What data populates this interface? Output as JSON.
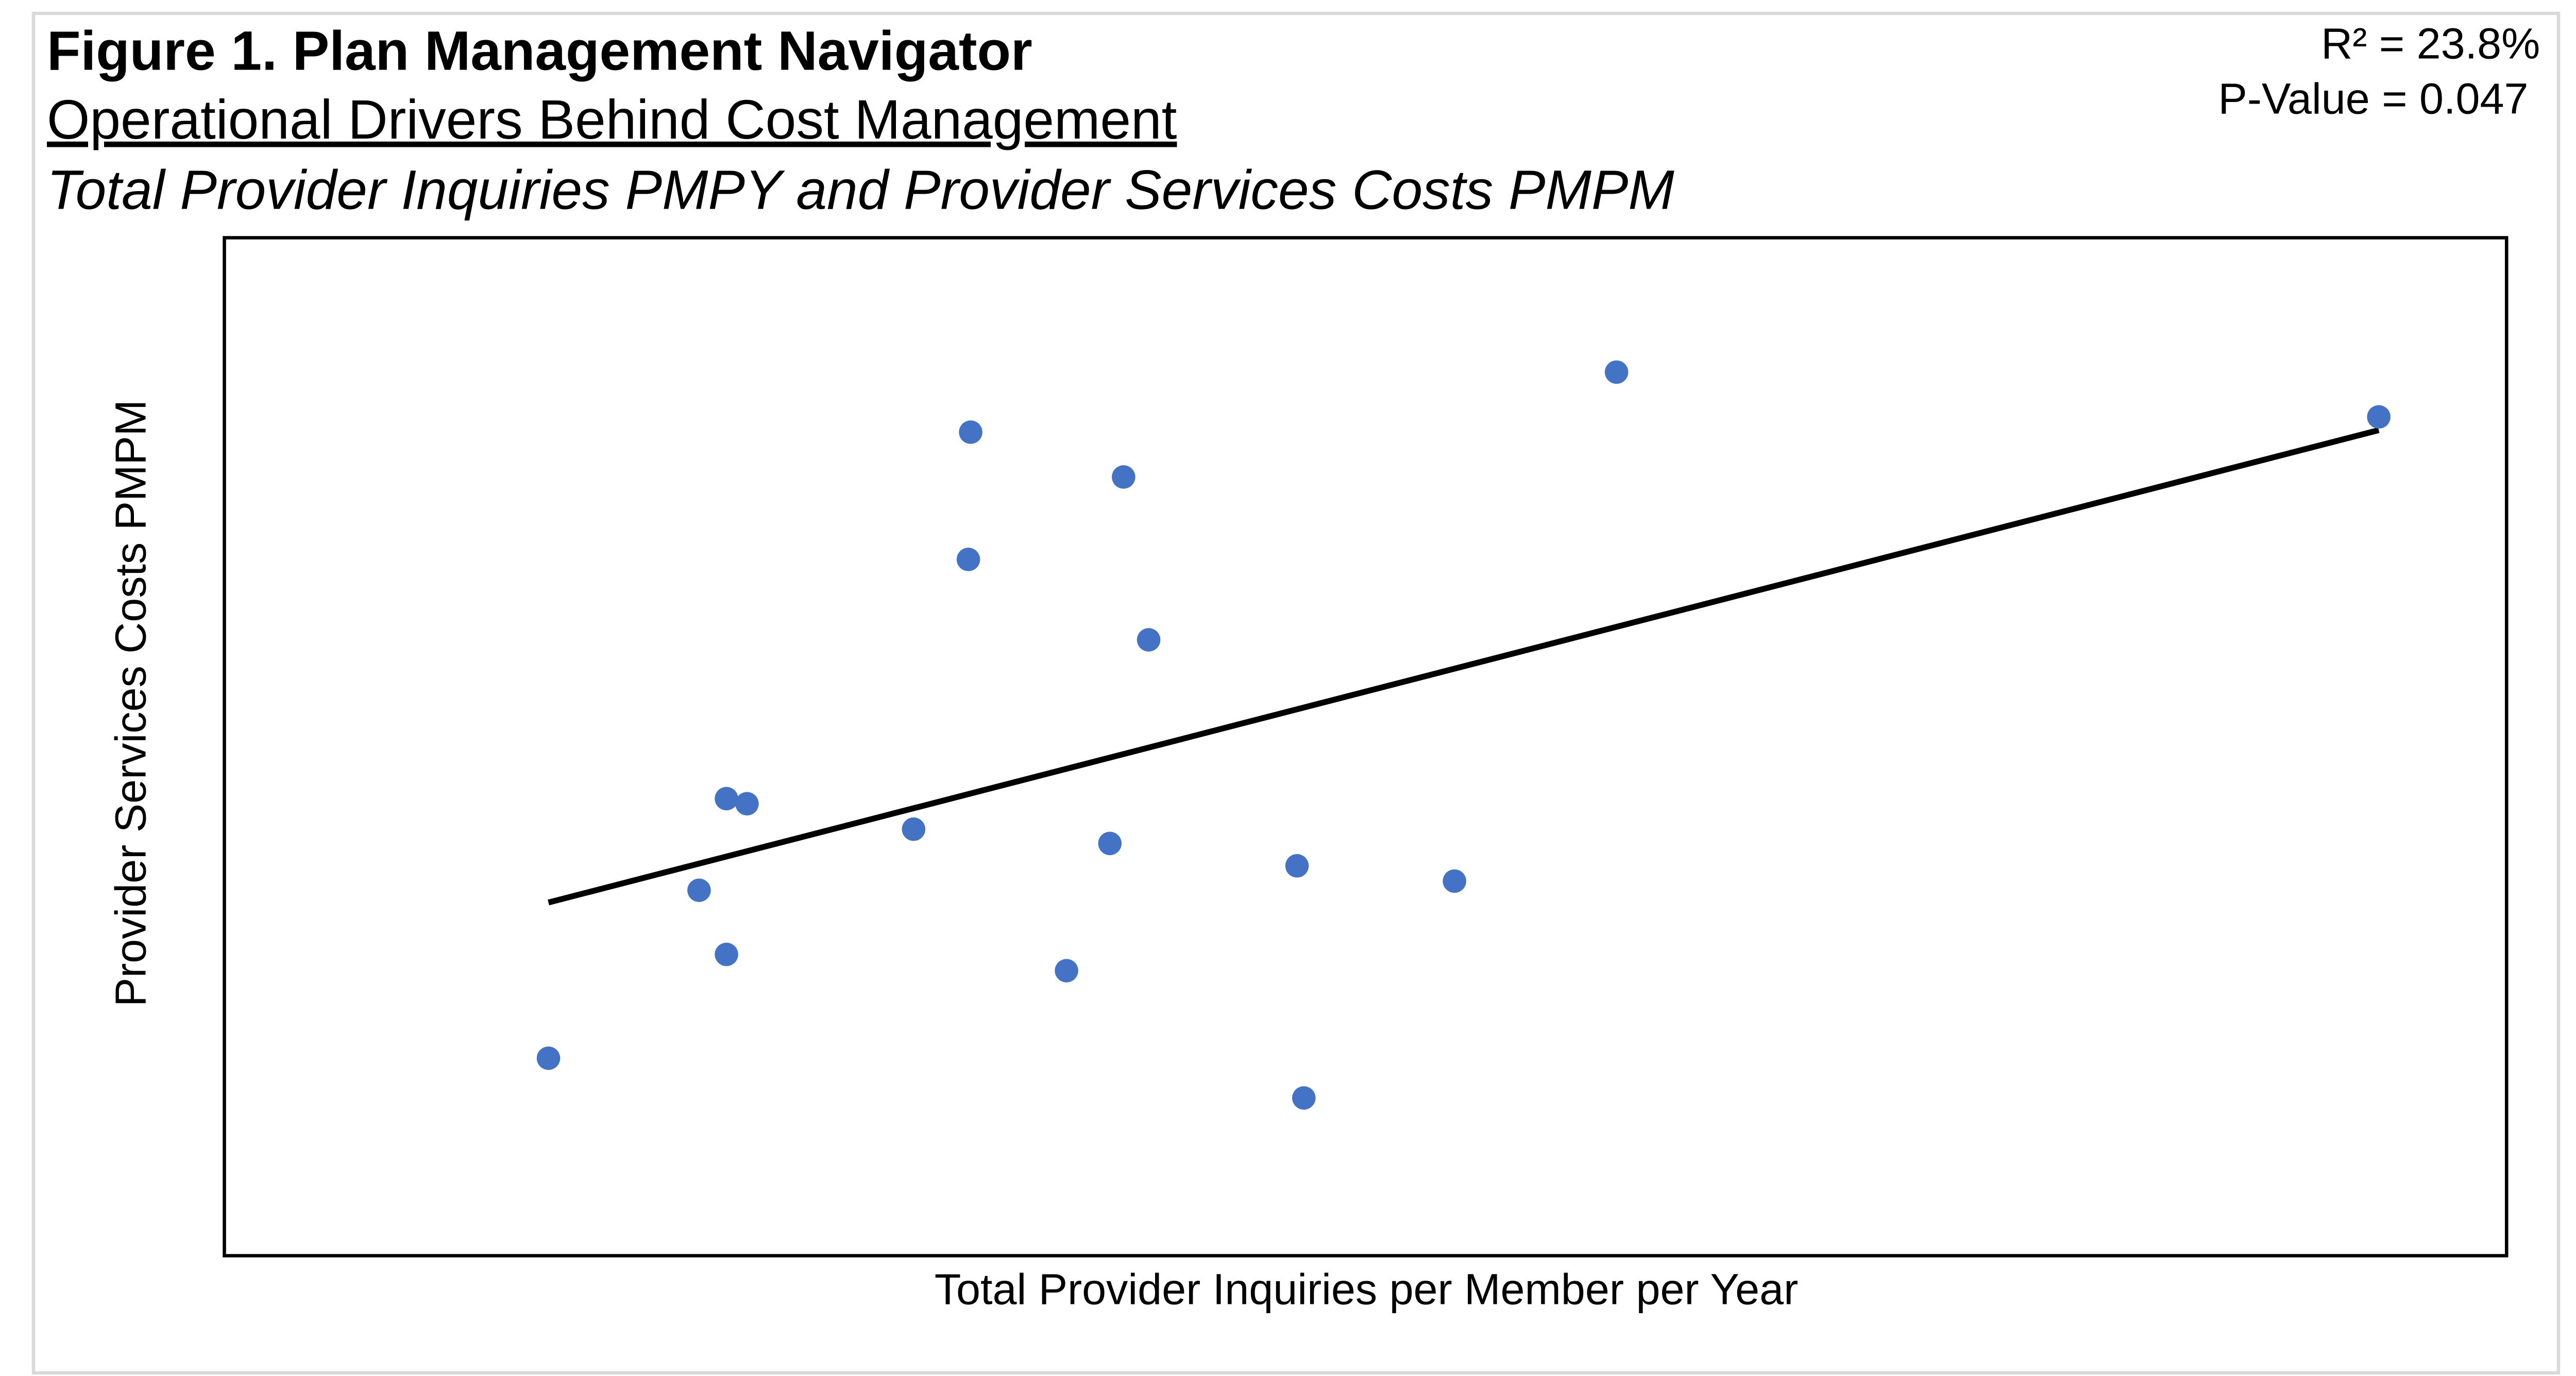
{
  "chart_data": {
    "type": "scatter",
    "title": "Figure 1. Plan Management Navigator",
    "subtitle": "Operational Drivers Behind Cost Management",
    "caption": "Total Provider Inquiries PMPY and Provider Services Costs PMPM",
    "annotations": [
      "R² = 23.8%",
      "P-Value = 0.047"
    ],
    "xlabel": "Total Provider Inquiries per Member per Year",
    "ylabel": "Provider Services Costs PMPM",
    "xlim": [
      0,
      100
    ],
    "ylim": [
      0,
      100
    ],
    "x": [
      14.2,
      20.8,
      22.0,
      22.0,
      22.9,
      30.2,
      32.6,
      32.7,
      36.9,
      38.8,
      39.4,
      40.5,
      47.0,
      47.3,
      53.9,
      61.0,
      94.4
    ],
    "values": [
      19.4,
      35.9,
      29.6,
      44.9,
      44.4,
      41.9,
      68.4,
      80.9,
      28.0,
      40.5,
      76.5,
      60.5,
      38.3,
      15.5,
      36.8,
      86.8,
      82.4
    ],
    "color": "#4472c4",
    "trendline": {
      "x": [
        14.2,
        94.4
      ],
      "y": [
        34.7,
        81.1
      ],
      "color": "#000000"
    }
  }
}
